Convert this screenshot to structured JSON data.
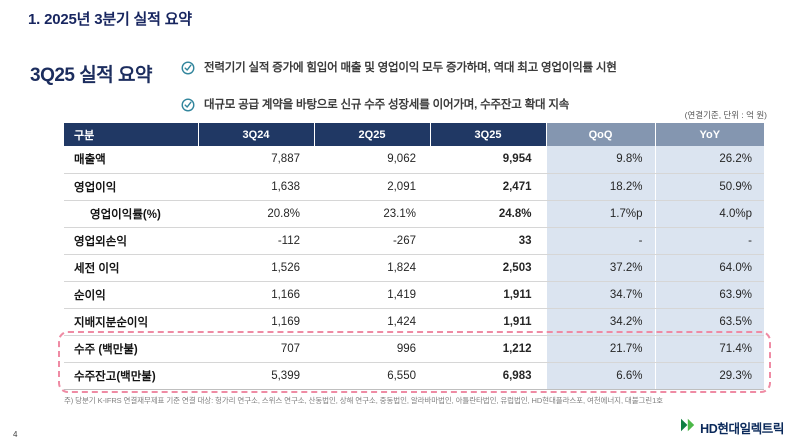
{
  "header": {
    "title": "1. 2025년 3분기 실적 요약"
  },
  "summary": {
    "title": "3Q25 실적 요약",
    "bullets": [
      "전력기기 실적 증가에 힘입어 매출 및 영업이익 모두 증가하며, 역대 최고 영업이익률 시현",
      "대규모 공급 계약을 바탕으로 신규 수주 성장세를 이어가며, 수주잔고 확대 지속"
    ]
  },
  "table": {
    "unit_note": "(연결기준, 단위 : 억 원)",
    "headers": [
      "구분",
      "3Q24",
      "2Q25",
      "3Q25",
      "QoQ",
      "YoY"
    ],
    "rows": [
      {
        "label": "매출액",
        "values": [
          "7,887",
          "9,062",
          "9,954",
          "9.8%",
          "26.2%"
        ],
        "indent": false,
        "highlight": false
      },
      {
        "label": "영업이익",
        "values": [
          "1,638",
          "2,091",
          "2,471",
          "18.2%",
          "50.9%"
        ],
        "indent": false,
        "highlight": false
      },
      {
        "label": "영업이익률(%)",
        "values": [
          "20.8%",
          "23.1%",
          "24.8%",
          "1.7%p",
          "4.0%p"
        ],
        "indent": true,
        "highlight": false
      },
      {
        "label": "영업외손익",
        "values": [
          "-112",
          "-267",
          "33",
          "-",
          "-"
        ],
        "indent": false,
        "highlight": false
      },
      {
        "label": "세전 이익",
        "values": [
          "1,526",
          "1,824",
          "2,503",
          "37.2%",
          "64.0%"
        ],
        "indent": false,
        "highlight": false
      },
      {
        "label": "순이익",
        "values": [
          "1,166",
          "1,419",
          "1,911",
          "34.7%",
          "63.9%"
        ],
        "indent": false,
        "highlight": false
      },
      {
        "label": "지배지분순이익",
        "values": [
          "1,169",
          "1,424",
          "1,911",
          "34.2%",
          "63.5%"
        ],
        "indent": false,
        "highlight": false
      },
      {
        "label": "수주 (백만불)",
        "values": [
          "707",
          "996",
          "1,212",
          "21.7%",
          "71.4%"
        ],
        "indent": false,
        "highlight": true
      },
      {
        "label": "수주잔고(백만불)",
        "values": [
          "5,399",
          "6,550",
          "6,983",
          "6.6%",
          "29.3%"
        ],
        "indent": false,
        "highlight": true
      }
    ]
  },
  "footnote": "주) 당분기 K-IFRS 연결재무제표 기준 연결 대상: 헝가리 연구소, 스위스 연구소, 산동법인, 상해 연구소, 중동법인, 알라바마법인, 아틀란타법인, 유럽법인, HD현대플라스포, 여천에너지, 대불그린1호",
  "page_number": "4",
  "logo": {
    "text": "HD현대일렉트릭"
  },
  "colors": {
    "navy_header": "#203864",
    "title_navy": "#17255f",
    "qoq_yoy_header": "#8496b0",
    "qoq_yoy_column": "#dbe4f0",
    "highlight_dash": "#ef8ba4",
    "check_icon": "#31859c",
    "logo_green_dark": "#0e7f41",
    "logo_green_light": "#4cb848"
  }
}
